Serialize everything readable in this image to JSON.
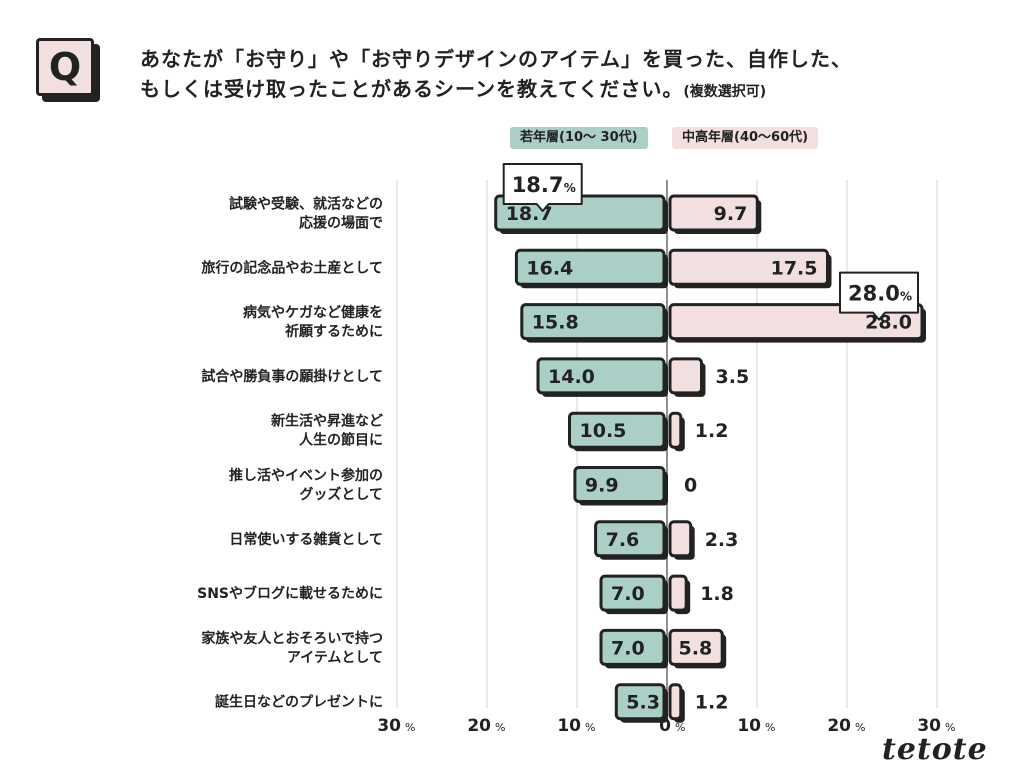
{
  "badge": "Q",
  "question": {
    "line1": "あなたが「お守り」や「お守りデザインのアイテム」を買った、自作した、",
    "line2": "もしくは受け取ったことがあるシーンを教えてください。",
    "note": "(複数選択可)"
  },
  "brand": "tetote",
  "chart_data": {
    "type": "bar",
    "orientation": "horizontal-butterfly",
    "categories": [
      [
        "試験や受験、就活などの",
        "応援の場面で"
      ],
      [
        "旅行の記念品やお土産として"
      ],
      [
        "病気やケガなど健康を",
        "祈願するために"
      ],
      [
        "試合や勝負事の願掛けとして"
      ],
      [
        "新生活や昇進など",
        "人生の節目に"
      ],
      [
        "推し活やイベント参加の",
        "グッズとして"
      ],
      [
        "日常使いする雑貨として"
      ],
      [
        "SNSやブログに載せるために"
      ],
      [
        "家族や友人とおそろいで持つ",
        "アイテムとして"
      ],
      [
        "誕生日などのプレゼントに"
      ]
    ],
    "series": [
      {
        "name": "若年層(10〜 30代)",
        "color": "#a9cfc6",
        "values": [
          18.7,
          16.4,
          15.8,
          14.0,
          10.5,
          9.9,
          7.6,
          7.0,
          7.0,
          5.3
        ],
        "labels": [
          "18.7",
          "16.4",
          "15.8",
          "14.0",
          "10.5",
          "9.9",
          "7.6",
          "7.0",
          "7.0",
          "5.3"
        ]
      },
      {
        "name": "中高年層(40〜60代)",
        "color": "#f2dfe0",
        "values": [
          9.7,
          17.5,
          28.0,
          3.5,
          1.2,
          0,
          2.3,
          1.8,
          5.8,
          1.2
        ],
        "labels": [
          "9.7",
          "17.5",
          "28.0",
          "3.5",
          "1.2",
          "0",
          "2.3",
          "1.8",
          "5.8",
          "1.2"
        ]
      }
    ],
    "callouts": [
      {
        "series": 0,
        "index": 0,
        "text": "18.7",
        "unit": "%"
      },
      {
        "series": 1,
        "index": 2,
        "text": "28.0",
        "unit": "%"
      }
    ],
    "axis": {
      "ticks": [
        30,
        20,
        10,
        0,
        10,
        20,
        30
      ],
      "tick_labels": [
        "30",
        "20",
        "10",
        "0",
        "10",
        "20",
        "30"
      ],
      "unit": "%",
      "range": [
        0,
        30
      ]
    },
    "grid": true
  }
}
